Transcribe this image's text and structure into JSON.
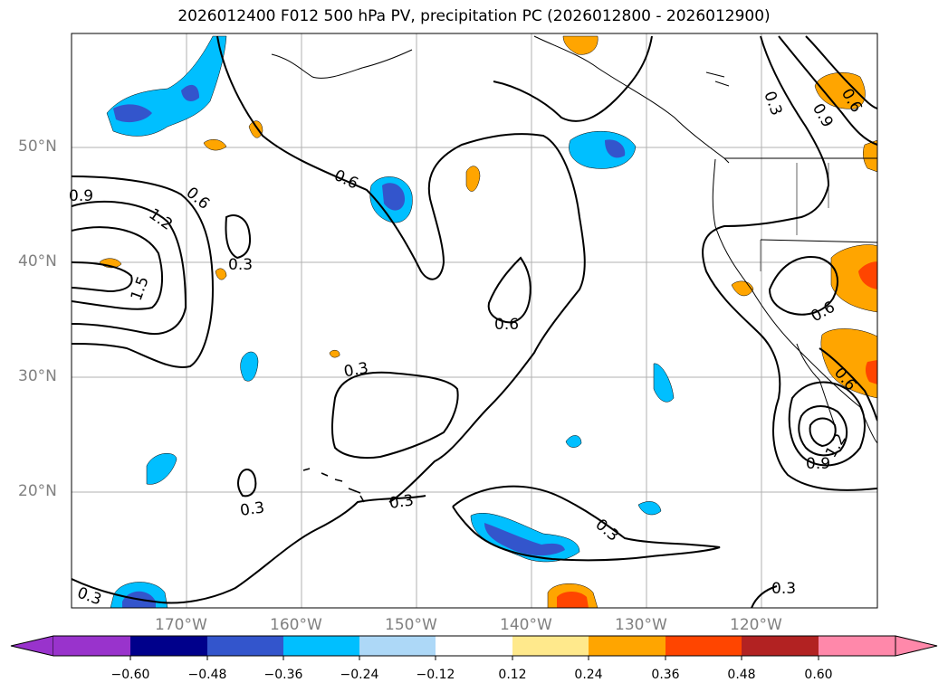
{
  "title": "2026012400 F012 500 hPa PV, precipitation PC (2026012800 - 2026012900)",
  "lat_labels": [
    "50°N",
    "40°N",
    "30°N",
    "20°N"
  ],
  "lon_labels": [
    "170°W",
    "160°W",
    "150°W",
    "140°W",
    "130°W",
    "120°W"
  ],
  "contour_labels": [
    "0.9",
    "0.6",
    "1.2",
    "1.5",
    "0.3",
    "0.6",
    "0.6",
    "0.3",
    "0.3",
    "0.3",
    "0.3",
    "0.3",
    "0.3",
    "0.3",
    "0.9",
    "0.6",
    "0.6",
    "0.6",
    "1.2",
    "0.9"
  ],
  "colorbar": {
    "ticks": [
      "−0.60",
      "−0.48",
      "−0.36",
      "−0.24",
      "−0.12",
      "0.12",
      "0.24",
      "0.36",
      "0.48",
      "0.60"
    ],
    "colors": [
      "#9933cc",
      "#00008b",
      "#3355cc",
      "#00bfff",
      "#add8f7",
      "#ffffff",
      "#ffe98c",
      "#ffa500",
      "#ff4500",
      "#b22222",
      "#ff88aa"
    ]
  },
  "colors": {
    "blue_light": "#00bfff",
    "blue_dark": "#3355cc",
    "orange": "#ffa500",
    "red": "#ff4500",
    "yellow": "#ffe98c"
  }
}
